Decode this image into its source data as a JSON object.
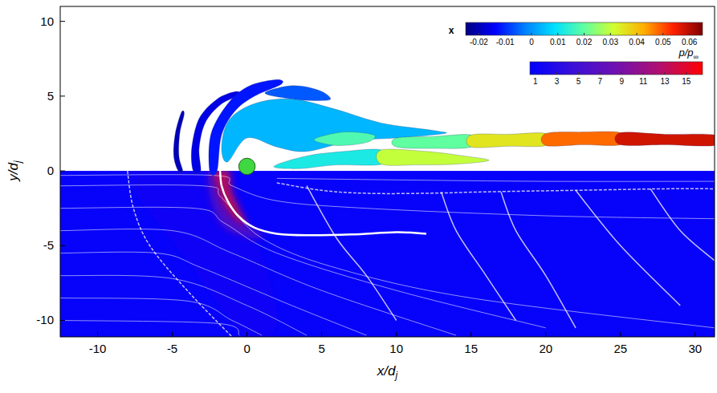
{
  "chart_data": {
    "type": "contour",
    "x_label": "x/dj",
    "y_label": "y/dj",
    "xlim": [
      -12.5,
      31.3
    ],
    "ylim": [
      -11.1,
      11
    ],
    "xticks": [
      -10,
      -5,
      0,
      5,
      10,
      15,
      20,
      25,
      30
    ],
    "yticks": [
      -10,
      -5,
      0,
      5,
      10
    ],
    "colorbars": [
      {
        "label": "x",
        "range": [
          -0.025,
          0.065
        ],
        "ticks": [
          -0.02,
          -0.01,
          0,
          0.01,
          0.02,
          0.03,
          0.04,
          0.05,
          0.06
        ],
        "colors": [
          "#00007f",
          "#0000ff",
          "#0080ff",
          "#00e0ff",
          "#60ffa0",
          "#d0ff30",
          "#ffb000",
          "#ff2000",
          "#7f0000"
        ]
      },
      {
        "label": "p/p∞",
        "range": [
          0.5,
          16.5
        ],
        "ticks": [
          1,
          3,
          5,
          7,
          9,
          11,
          13,
          15
        ],
        "colors": [
          "#0000ff",
          "#3a10d8",
          "#7010b0",
          "#b01070",
          "#ff0000"
        ]
      }
    ],
    "jet": {
      "x": 0,
      "y": 0.3,
      "r": 0.55,
      "color": "#40d840"
    },
    "isosurfaces": [
      {
        "value": -0.02,
        "x": [
          -4.3,
          -4.6,
          -4.9,
          -4.8,
          -4.4,
          -4.2,
          -4.5,
          -4.55
        ],
        "y": [
          0,
          0,
          1,
          2.5,
          3.9,
          3.8,
          2.5,
          1
        ]
      },
      {
        "value": -0.016,
        "x": [
          -3.1,
          -3.6,
          -3.7,
          -3.2,
          -2.0,
          -0.8,
          -0.5,
          -1.8,
          -2.8,
          -3.2
        ],
        "y": [
          0,
          0,
          1.5,
          3.5,
          4.8,
          5.3,
          5.1,
          4.4,
          3.2,
          1.5
        ]
      },
      {
        "value": -0.012,
        "x": [
          -2.0,
          -2.5,
          -2.4,
          -1.2,
          0.2,
          2.0,
          2.3,
          0.5,
          -0.8,
          -1.7
        ],
        "y": [
          0,
          0,
          2.5,
          4.6,
          5.7,
          6.1,
          5.8,
          5.0,
          4.0,
          2.4
        ]
      },
      {
        "value": -0.006,
        "x": [
          1.2,
          3.0,
          4.8,
          5.6,
          4.5,
          3.0
        ],
        "y": [
          5.2,
          5.7,
          5.4,
          4.8,
          4.7,
          4.8
        ]
      },
      {
        "value": 0.004,
        "x": [
          -1.3,
          -1.7,
          -1.2,
          0.5,
          3.0,
          6.0,
          9.0,
          12.5,
          13.2,
          10.0,
          7.0,
          4.0,
          2.0,
          0.0
        ],
        "y": [
          0.6,
          1.6,
          3.4,
          4.5,
          4.8,
          4.1,
          3.2,
          2.7,
          2.5,
          2.2,
          2.0,
          1.3,
          1.6,
          2.2
        ]
      },
      {
        "value": 0.012,
        "x": [
          1.8,
          4.0,
          6.5,
          9.0,
          9.0,
          6.0,
          3.5
        ],
        "y": [
          0.3,
          1.0,
          1.3,
          1.4,
          0.45,
          0.4,
          0.15
        ]
      },
      {
        "value": 0.03,
        "x": [
          9.0,
          12.0,
          14.5,
          16.2,
          14.0,
          11.5,
          9.0
        ],
        "y": [
          1.4,
          1.3,
          1.0,
          0.7,
          0.45,
          0.4,
          0.45
        ]
      },
      {
        "value": 0.02,
        "x": [
          10.0,
          12.5,
          15.0,
          15.0,
          12.5,
          10.0
        ],
        "y": [
          2.2,
          2.3,
          2.4,
          1.6,
          1.5,
          1.6
        ]
      },
      {
        "value": 0.035,
        "x": [
          15.0,
          17.5,
          20.0,
          20.0,
          17.5,
          15.0
        ],
        "y": [
          2.4,
          2.45,
          2.5,
          1.7,
          1.65,
          1.6
        ]
      },
      {
        "value": 0.048,
        "x": [
          20.0,
          22.5,
          25.0,
          25.0,
          22.5,
          20.0
        ],
        "y": [
          2.5,
          2.6,
          2.55,
          1.75,
          1.75,
          1.7
        ]
      },
      {
        "value": 0.058,
        "x": [
          25.0,
          28.0,
          31.3,
          31.3,
          28.0,
          25.0
        ],
        "y": [
          2.55,
          2.45,
          2.4,
          1.7,
          1.75,
          1.75
        ]
      },
      {
        "value": 0.018,
        "x": [
          4.5,
          6.5,
          8.5,
          8.0,
          6.0
        ],
        "y": [
          2.1,
          2.6,
          2.4,
          1.9,
          1.7
        ]
      }
    ],
    "pressure_regions": [
      {
        "value": 2.5,
        "x": [
          -8.0,
          -2.6,
          -2.4,
          -1.5,
          0.5,
          2.0,
          0.0,
          -4.0
        ],
        "y": [
          0,
          0,
          -2.0,
          -3.8,
          -4.5,
          -10.0,
          -11.1,
          -6.0
        ]
      },
      {
        "value": 7,
        "x": [
          -2.6,
          -2.2,
          -2.1,
          -1.6,
          -0.8,
          1.0,
          0.5,
          -1.5,
          -2.4
        ],
        "y": [
          0,
          0,
          -1.0,
          -2.3,
          -3.3,
          -4.2,
          -4.5,
          -3.8,
          -2.0
        ]
      },
      {
        "value": 14,
        "x": [
          -2.2,
          -1.2,
          -1.0,
          -0.5,
          0.0,
          -0.8,
          -1.6,
          -2.1
        ],
        "y": [
          0,
          0,
          -1.3,
          -2.5,
          -3.6,
          -3.3,
          -2.3,
          -1.0
        ]
      }
    ],
    "shocks": [
      {
        "x": [
          -1.8,
          -1.7,
          -1.3,
          -0.6,
          0.5,
          2.0,
          4.0,
          7.0,
          10.0,
          12.0
        ],
        "y": [
          0,
          -1.0,
          -2.0,
          -3.0,
          -3.8,
          -4.2,
          -4.3,
          -4.25,
          -4.1,
          -4.2
        ]
      },
      {
        "x": [
          -8.0,
          -7.6,
          -6.5,
          -4.0,
          -1.0
        ],
        "y": [
          0,
          -2.5,
          -5.0,
          -8.0,
          -11.1
        ]
      },
      {
        "x": [
          2.0,
          5.0,
          8.0,
          12.0,
          16.0,
          22.0,
          28.0,
          31.3
        ],
        "y": [
          -0.8,
          -1.3,
          -1.5,
          -1.5,
          -1.4,
          -1.3,
          -1.2,
          -1.2
        ]
      },
      {
        "x": [
          4.0,
          6.0,
          8.0,
          10.0
        ],
        "y": [
          -1.0,
          -4.5,
          -7.0,
          -10.0
        ]
      },
      {
        "x": [
          13.0,
          14.0,
          16.0,
          18.0
        ],
        "y": [
          -1.4,
          -4.0,
          -7.0,
          -10.0
        ]
      },
      {
        "x": [
          17.0,
          18.0,
          20.0,
          22.0
        ],
        "y": [
          -1.4,
          -4.0,
          -7.0,
          -10.5
        ]
      },
      {
        "x": [
          22.0,
          25.0,
          29.0
        ],
        "y": [
          -1.3,
          -5.0,
          -9.0
        ]
      },
      {
        "x": [
          27.0,
          29.0,
          31.3
        ],
        "y": [
          -1.2,
          -4.0,
          -6.0
        ]
      }
    ],
    "streamlines": [
      {
        "x": [
          -12.5,
          -2.2,
          -1.0,
          2.0,
          8.0,
          20.0,
          31.3
        ],
        "y": [
          -0.3,
          -0.3,
          -1.0,
          -2.0,
          -2.5,
          -3.0,
          -3.2
        ]
      },
      {
        "x": [
          -12.5,
          -3.0,
          -1.7,
          1.0,
          6.0,
          15.0,
          31.3
        ],
        "y": [
          -1.0,
          -1.0,
          -1.8,
          -4.5,
          -6.5,
          -8.5,
          -10.5
        ]
      },
      {
        "x": [
          -12.5,
          -3.5,
          -1.5,
          2.0,
          10.0,
          20.0
        ],
        "y": [
          -2.5,
          -2.5,
          -3.5,
          -5.5,
          -8.0,
          -10.5
        ]
      },
      {
        "x": [
          -12.5,
          -5.0,
          -1.0,
          5.0,
          14.0
        ],
        "y": [
          -4.0,
          -4.0,
          -5.5,
          -8.0,
          -11.0
        ]
      },
      {
        "x": [
          -12.5,
          -6.0,
          -3.0,
          3.0,
          8.0
        ],
        "y": [
          -5.5,
          -5.5,
          -6.5,
          -9.0,
          -11.0
        ]
      },
      {
        "x": [
          -12.5,
          -5.0,
          0.0,
          4.0
        ],
        "y": [
          -7.0,
          -7.2,
          -9.0,
          -11.0
        ]
      },
      {
        "x": [
          -12.5,
          -4.0,
          -1.0,
          1.0
        ],
        "y": [
          -8.5,
          -8.7,
          -10.0,
          -11.0
        ]
      },
      {
        "x": [
          -12.5,
          -2.0,
          -0.5
        ],
        "y": [
          -10.0,
          -10.2,
          -11.0
        ]
      },
      {
        "x": [
          2.0,
          10.0,
          20.0,
          31.3
        ],
        "y": [
          -0.5,
          -0.6,
          -0.7,
          -0.7
        ]
      }
    ]
  }
}
